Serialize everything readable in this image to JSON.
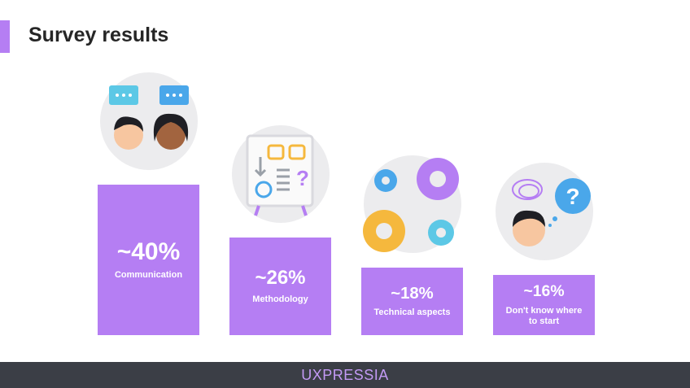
{
  "chart_data": {
    "type": "bar",
    "title": "Survey results",
    "categories": [
      "Communication",
      "Methodology",
      "Technical aspects",
      "Don't know where to start"
    ],
    "values": [
      40,
      26,
      18,
      16
    ],
    "value_labels": [
      "~40%",
      "~26%",
      "~18%",
      "~16%"
    ],
    "color": "#b57ef3"
  },
  "footer": {
    "brand": "UXPRESSIA"
  }
}
